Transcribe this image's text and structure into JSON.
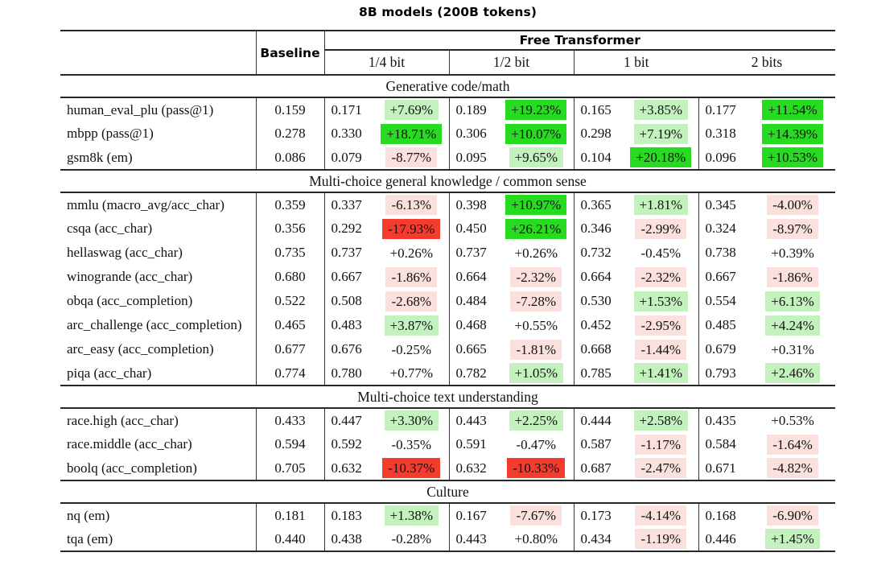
{
  "title": "8B models (200B tokens)",
  "header": {
    "baseline": "Baseline",
    "group_title": "Free Transformer",
    "bit_labels": [
      "1/4 bit",
      "1/2 bit",
      "1 bit",
      "2 bits"
    ]
  },
  "colors": {
    "g1": "#c3f2bf",
    "g2": "#27dc20",
    "r1": "#fbe1dd",
    "r2": "#f53b2e",
    "none": "transparent",
    "rule": "#262626"
  },
  "sections": [
    {
      "title": "Generative code/math",
      "rows": [
        {
          "label": "human_eval_plu (pass@1)",
          "baseline": "0.159",
          "cells": [
            {
              "v": "0.171",
              "d": "+7.69%",
              "bg": "g1"
            },
            {
              "v": "0.189",
              "d": "+19.23%",
              "bg": "g2"
            },
            {
              "v": "0.165",
              "d": "+3.85%",
              "bg": "g1"
            },
            {
              "v": "0.177",
              "d": "+11.54%",
              "bg": "g2"
            }
          ]
        },
        {
          "label": "mbpp (pass@1)",
          "baseline": "0.278",
          "cells": [
            {
              "v": "0.330",
              "d": "+18.71%",
              "bg": "g2"
            },
            {
              "v": "0.306",
              "d": "+10.07%",
              "bg": "g2"
            },
            {
              "v": "0.298",
              "d": "+7.19%",
              "bg": "g1"
            },
            {
              "v": "0.318",
              "d": "+14.39%",
              "bg": "g2"
            }
          ]
        },
        {
          "label": "gsm8k (em)",
          "baseline": "0.086",
          "cells": [
            {
              "v": "0.079",
              "d": "-8.77%",
              "bg": "r1"
            },
            {
              "v": "0.095",
              "d": "+9.65%",
              "bg": "g1"
            },
            {
              "v": "0.104",
              "d": "+20.18%",
              "bg": "g2"
            },
            {
              "v": "0.096",
              "d": "+10.53%",
              "bg": "g2"
            }
          ]
        }
      ]
    },
    {
      "title": "Multi-choice general knowledge / common sense",
      "rows": [
        {
          "label": "mmlu (macro_avg/acc_char)",
          "baseline": "0.359",
          "cells": [
            {
              "v": "0.337",
              "d": "-6.13%",
              "bg": "r1"
            },
            {
              "v": "0.398",
              "d": "+10.97%",
              "bg": "g2"
            },
            {
              "v": "0.365",
              "d": "+1.81%",
              "bg": "g1"
            },
            {
              "v": "0.345",
              "d": "-4.00%",
              "bg": "r1"
            }
          ]
        },
        {
          "label": "csqa (acc_char)",
          "baseline": "0.356",
          "cells": [
            {
              "v": "0.292",
              "d": "-17.93%",
              "bg": "r2"
            },
            {
              "v": "0.450",
              "d": "+26.21%",
              "bg": "g2"
            },
            {
              "v": "0.346",
              "d": "-2.99%",
              "bg": "r1"
            },
            {
              "v": "0.324",
              "d": "-8.97%",
              "bg": "r1"
            }
          ]
        },
        {
          "label": "hellaswag (acc_char)",
          "baseline": "0.735",
          "cells": [
            {
              "v": "0.737",
              "d": "+0.26%",
              "bg": "none"
            },
            {
              "v": "0.737",
              "d": "+0.26%",
              "bg": "none"
            },
            {
              "v": "0.732",
              "d": "-0.45%",
              "bg": "none"
            },
            {
              "v": "0.738",
              "d": "+0.39%",
              "bg": "none"
            }
          ]
        },
        {
          "label": "winogrande (acc_char)",
          "baseline": "0.680",
          "cells": [
            {
              "v": "0.667",
              "d": "-1.86%",
              "bg": "r1"
            },
            {
              "v": "0.664",
              "d": "-2.32%",
              "bg": "r1"
            },
            {
              "v": "0.664",
              "d": "-2.32%",
              "bg": "r1"
            },
            {
              "v": "0.667",
              "d": "-1.86%",
              "bg": "r1"
            }
          ]
        },
        {
          "label": "obqa (acc_completion)",
          "baseline": "0.522",
          "cells": [
            {
              "v": "0.508",
              "d": "-2.68%",
              "bg": "r1"
            },
            {
              "v": "0.484",
              "d": "-7.28%",
              "bg": "r1"
            },
            {
              "v": "0.530",
              "d": "+1.53%",
              "bg": "g1"
            },
            {
              "v": "0.554",
              "d": "+6.13%",
              "bg": "g1"
            }
          ]
        },
        {
          "label": "arc_challenge (acc_completion)",
          "baseline": "0.465",
          "cells": [
            {
              "v": "0.483",
              "d": "+3.87%",
              "bg": "g1"
            },
            {
              "v": "0.468",
              "d": "+0.55%",
              "bg": "none"
            },
            {
              "v": "0.452",
              "d": "-2.95%",
              "bg": "r1"
            },
            {
              "v": "0.485",
              "d": "+4.24%",
              "bg": "g1"
            }
          ]
        },
        {
          "label": "arc_easy (acc_completion)",
          "baseline": "0.677",
          "cells": [
            {
              "v": "0.676",
              "d": "-0.25%",
              "bg": "none"
            },
            {
              "v": "0.665",
              "d": "-1.81%",
              "bg": "r1"
            },
            {
              "v": "0.668",
              "d": "-1.44%",
              "bg": "r1"
            },
            {
              "v": "0.679",
              "d": "+0.31%",
              "bg": "none"
            }
          ]
        },
        {
          "label": "piqa (acc_char)",
          "baseline": "0.774",
          "cells": [
            {
              "v": "0.780",
              "d": "+0.77%",
              "bg": "none"
            },
            {
              "v": "0.782",
              "d": "+1.05%",
              "bg": "g1"
            },
            {
              "v": "0.785",
              "d": "+1.41%",
              "bg": "g1"
            },
            {
              "v": "0.793",
              "d": "+2.46%",
              "bg": "g1"
            }
          ]
        }
      ]
    },
    {
      "title": "Multi-choice text understanding",
      "rows": [
        {
          "label": "race.high (acc_char)",
          "baseline": "0.433",
          "cells": [
            {
              "v": "0.447",
              "d": "+3.30%",
              "bg": "g1"
            },
            {
              "v": "0.443",
              "d": "+2.25%",
              "bg": "g1"
            },
            {
              "v": "0.444",
              "d": "+2.58%",
              "bg": "g1"
            },
            {
              "v": "0.435",
              "d": "+0.53%",
              "bg": "none"
            }
          ]
        },
        {
          "label": "race.middle (acc_char)",
          "baseline": "0.594",
          "cells": [
            {
              "v": "0.592",
              "d": "-0.35%",
              "bg": "none"
            },
            {
              "v": "0.591",
              "d": "-0.47%",
              "bg": "none"
            },
            {
              "v": "0.587",
              "d": "-1.17%",
              "bg": "r1"
            },
            {
              "v": "0.584",
              "d": "-1.64%",
              "bg": "r1"
            }
          ]
        },
        {
          "label": "boolq (acc_completion)",
          "baseline": "0.705",
          "cells": [
            {
              "v": "0.632",
              "d": "-10.37%",
              "bg": "r2"
            },
            {
              "v": "0.632",
              "d": "-10.33%",
              "bg": "r2"
            },
            {
              "v": "0.687",
              "d": "-2.47%",
              "bg": "r1"
            },
            {
              "v": "0.671",
              "d": "-4.82%",
              "bg": "r1"
            }
          ]
        }
      ]
    },
    {
      "title": "Culture",
      "rows": [
        {
          "label": "nq (em)",
          "baseline": "0.181",
          "cells": [
            {
              "v": "0.183",
              "d": "+1.38%",
              "bg": "g1"
            },
            {
              "v": "0.167",
              "d": "-7.67%",
              "bg": "r1"
            },
            {
              "v": "0.173",
              "d": "-4.14%",
              "bg": "r1"
            },
            {
              "v": "0.168",
              "d": "-6.90%",
              "bg": "r1"
            }
          ]
        },
        {
          "label": "tqa (em)",
          "baseline": "0.440",
          "cells": [
            {
              "v": "0.438",
              "d": "-0.28%",
              "bg": "none"
            },
            {
              "v": "0.443",
              "d": "+0.80%",
              "bg": "none"
            },
            {
              "v": "0.434",
              "d": "-1.19%",
              "bg": "r1"
            },
            {
              "v": "0.446",
              "d": "+1.45%",
              "bg": "g1"
            }
          ]
        }
      ]
    }
  ]
}
